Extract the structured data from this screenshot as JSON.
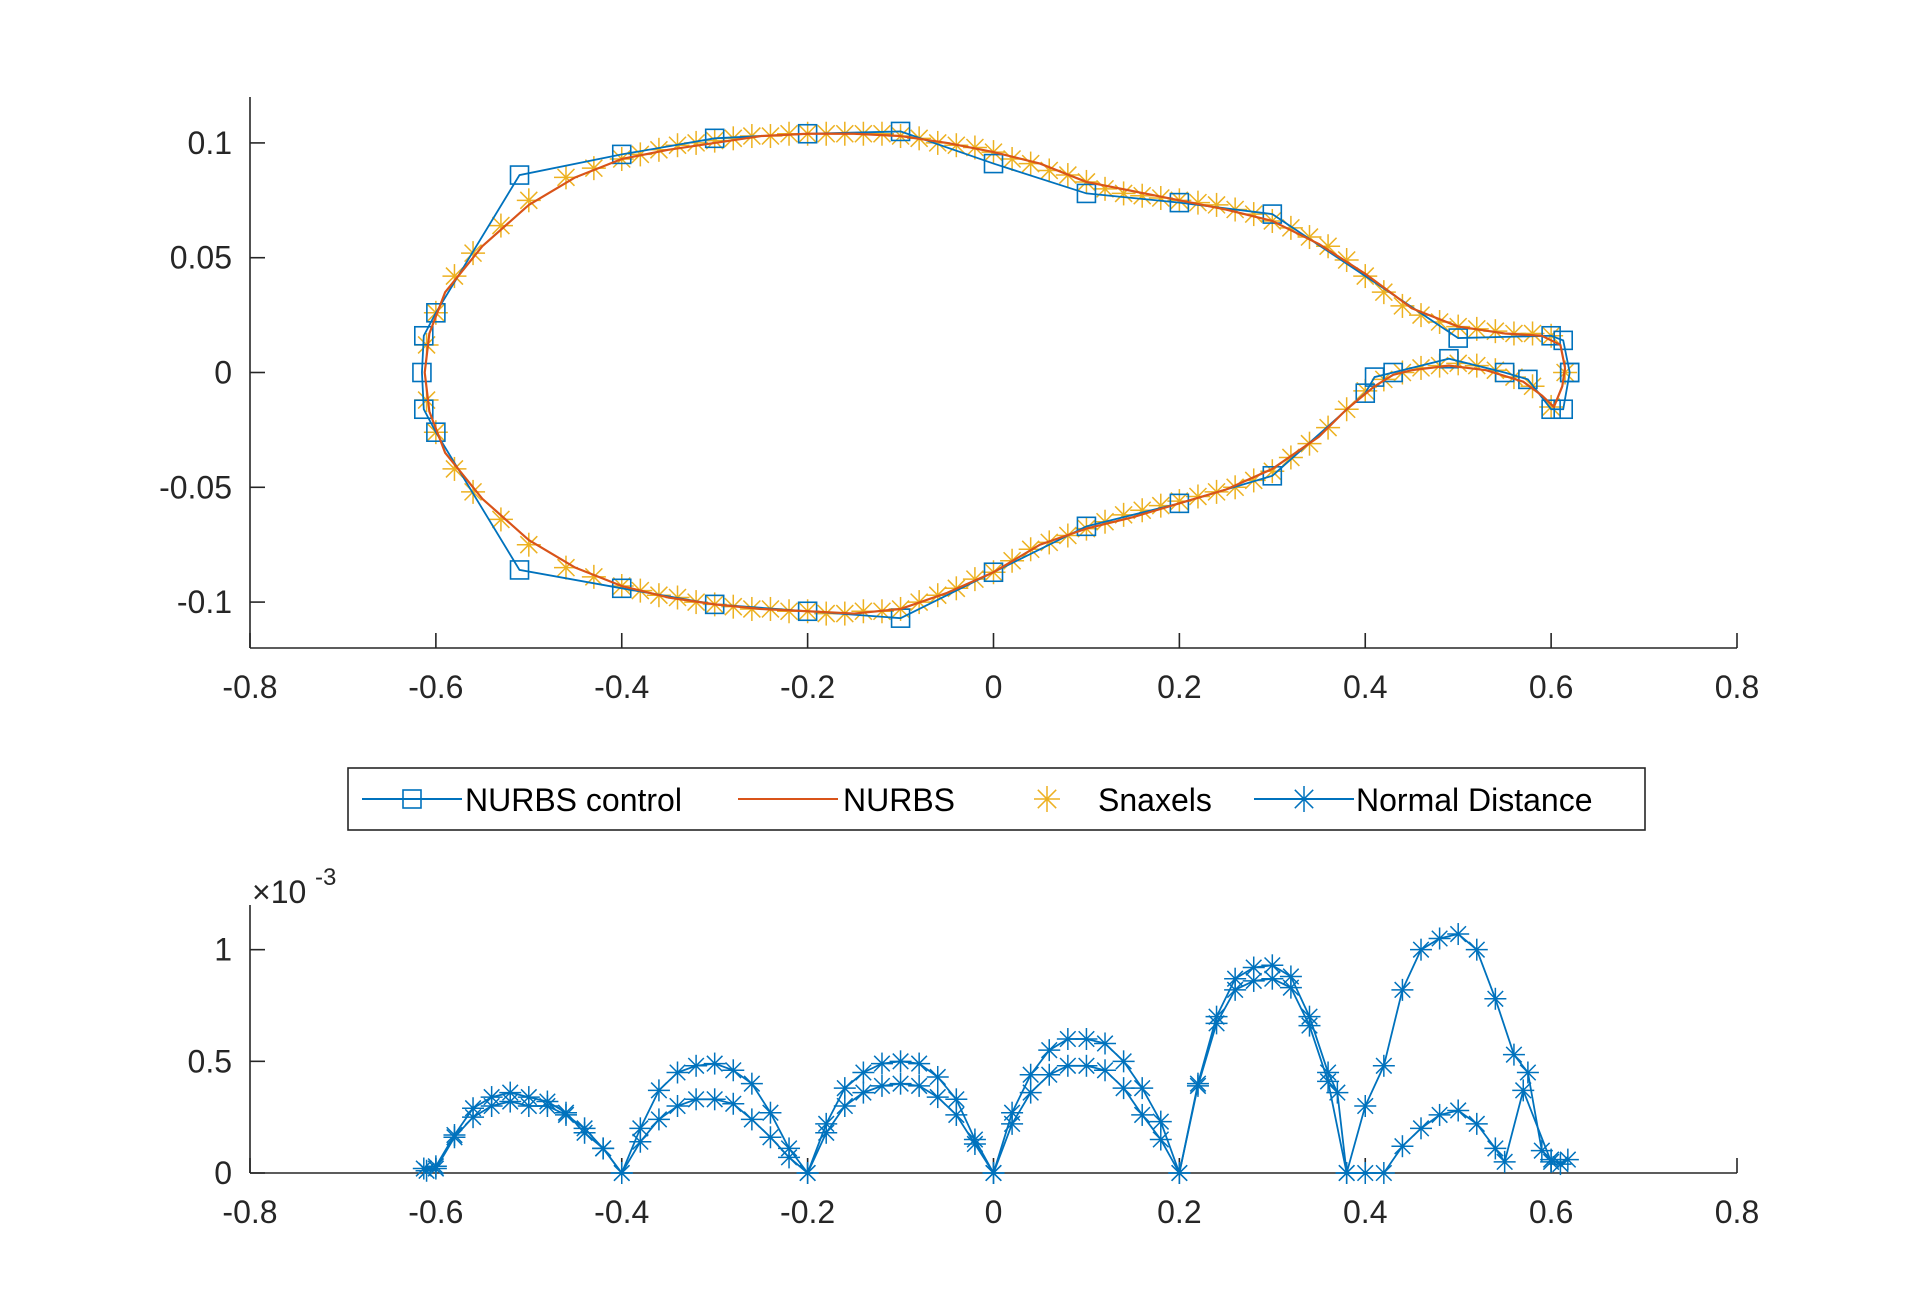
{
  "colors": {
    "control": "#0072BD",
    "nurbs": "#D95319",
    "snaxels": "#EDB120",
    "normal": "#0072BD",
    "axis": "#262626"
  },
  "legend": {
    "items": [
      {
        "label": "NURBS control",
        "marker": "square",
        "line": true
      },
      {
        "label": "NURBS",
        "marker": "none",
        "line": true
      },
      {
        "label": "Snaxels",
        "marker": "asterisk",
        "line": false
      },
      {
        "label": "Normal Distance",
        "marker": "asterisk",
        "line": true
      }
    ]
  },
  "chart_data": [
    {
      "type": "line",
      "title": "",
      "xlabel": "",
      "ylabel": "",
      "xlim": [
        -0.8,
        0.8
      ],
      "ylim": [
        -0.12,
        0.12
      ],
      "xticks": [
        -0.8,
        -0.6,
        -0.4,
        -0.2,
        0,
        0.2,
        0.4,
        0.6,
        0.8
      ],
      "xtick_labels": [
        "-0.8",
        "-0.6",
        "-0.4",
        "-0.2",
        "0",
        "0.2",
        "0.4",
        "0.6",
        "0.8"
      ],
      "yticks": [
        -0.1,
        -0.05,
        0,
        0.05,
        0.1
      ],
      "ytick_labels": [
        "-0.1",
        "-0.05",
        "0",
        "0.05",
        "0.1"
      ],
      "series": [
        {
          "name": "NURBS control",
          "marker": "square",
          "x": [
            0.62,
            0.613,
            0.6,
            0.5,
            0.3,
            0.2,
            0.1,
            0,
            -0.1,
            -0.2,
            -0.3,
            -0.4,
            -0.51,
            -0.6,
            -0.613,
            -0.615,
            -0.613,
            -0.6,
            -0.51,
            -0.4,
            -0.3,
            -0.2,
            -0.1,
            0,
            0.1,
            0.2,
            0.3,
            0.4,
            0.41,
            0.43,
            0.49,
            0.55,
            0.575,
            0.6,
            0.613,
            0.62
          ],
          "y": [
            0.0,
            0.014,
            0.016,
            0.015,
            0.069,
            0.074,
            0.078,
            0.091,
            0.105,
            0.104,
            0.102,
            0.095,
            0.086,
            0.026,
            0.016,
            0.0,
            -0.016,
            -0.026,
            -0.086,
            -0.094,
            -0.101,
            -0.104,
            -0.107,
            -0.087,
            -0.067,
            -0.057,
            -0.045,
            -0.009,
            -0.002,
            0.0,
            0.006,
            0.0,
            -0.003,
            -0.016,
            -0.016,
            0.0
          ]
        },
        {
          "name": "NURBS",
          "marker": "none",
          "x": [
            0.615,
            0.61,
            0.59,
            0.55,
            0.5,
            0.45,
            0.4,
            0.35,
            0.3,
            0.25,
            0.2,
            0.15,
            0.1,
            0.05,
            0.0,
            -0.05,
            -0.1,
            -0.15,
            -0.2,
            -0.25,
            -0.3,
            -0.35,
            -0.4,
            -0.45,
            -0.5,
            -0.55,
            -0.59,
            -0.607,
            -0.612,
            -0.607,
            -0.59,
            -0.55,
            -0.5,
            -0.45,
            -0.4,
            -0.35,
            -0.3,
            -0.25,
            -0.2,
            -0.15,
            -0.1,
            -0.05,
            0.0,
            0.05,
            0.1,
            0.15,
            0.2,
            0.25,
            0.3,
            0.35,
            0.38,
            0.41,
            0.43,
            0.45,
            0.49,
            0.53,
            0.57,
            0.59,
            0.603,
            0.612,
            0.615
          ],
          "y": [
            0.002,
            0.012,
            0.016,
            0.017,
            0.02,
            0.028,
            0.043,
            0.056,
            0.066,
            0.071,
            0.075,
            0.079,
            0.083,
            0.091,
            0.096,
            0.1,
            0.103,
            0.104,
            0.104,
            0.103,
            0.1,
            0.097,
            0.093,
            0.085,
            0.073,
            0.055,
            0.035,
            0.017,
            0.0,
            -0.017,
            -0.035,
            -0.055,
            -0.073,
            -0.085,
            -0.093,
            -0.098,
            -0.101,
            -0.103,
            -0.104,
            -0.105,
            -0.103,
            -0.096,
            -0.087,
            -0.075,
            -0.068,
            -0.063,
            -0.057,
            -0.051,
            -0.042,
            -0.028,
            -0.016,
            -0.006,
            -0.001,
            0.001,
            0.003,
            0.001,
            -0.004,
            -0.01,
            -0.015,
            -0.006,
            0.002
          ]
        },
        {
          "name": "Snaxels",
          "marker": "asterisk",
          "x": [
            0.615,
            0.6,
            0.58,
            0.56,
            0.54,
            0.52,
            0.5,
            0.48,
            0.46,
            0.44,
            0.42,
            0.4,
            0.38,
            0.36,
            0.34,
            0.32,
            0.3,
            0.28,
            0.26,
            0.24,
            0.22,
            0.2,
            0.18,
            0.16,
            0.14,
            0.12,
            0.1,
            0.08,
            0.06,
            0.04,
            0.02,
            0.0,
            -0.02,
            -0.04,
            -0.06,
            -0.08,
            -0.1,
            -0.12,
            -0.14,
            -0.16,
            -0.18,
            -0.2,
            -0.22,
            -0.24,
            -0.26,
            -0.28,
            -0.3,
            -0.32,
            -0.34,
            -0.36,
            -0.38,
            -0.4,
            -0.43,
            -0.46,
            -0.5,
            -0.53,
            -0.56,
            -0.58,
            -0.6,
            -0.61,
            -0.61,
            -0.6,
            -0.58,
            -0.56,
            -0.53,
            -0.5,
            -0.46,
            -0.43,
            -0.4,
            -0.38,
            -0.36,
            -0.34,
            -0.32,
            -0.3,
            -0.28,
            -0.26,
            -0.24,
            -0.22,
            -0.2,
            -0.18,
            -0.16,
            -0.14,
            -0.12,
            -0.1,
            -0.08,
            -0.06,
            -0.04,
            -0.02,
            0.0,
            0.02,
            0.04,
            0.06,
            0.08,
            0.1,
            0.12,
            0.14,
            0.16,
            0.18,
            0.2,
            0.22,
            0.24,
            0.26,
            0.28,
            0.3,
            0.32,
            0.34,
            0.36,
            0.38,
            0.4,
            0.42,
            0.44,
            0.46,
            0.48,
            0.5,
            0.52,
            0.54,
            0.56,
            0.58,
            0.6
          ],
          "y": [
            0.0,
            0.016,
            0.017,
            0.017,
            0.018,
            0.019,
            0.02,
            0.022,
            0.025,
            0.029,
            0.035,
            0.042,
            0.049,
            0.055,
            0.059,
            0.063,
            0.066,
            0.069,
            0.071,
            0.073,
            0.074,
            0.075,
            0.076,
            0.077,
            0.078,
            0.08,
            0.083,
            0.086,
            0.088,
            0.091,
            0.093,
            0.096,
            0.098,
            0.099,
            0.1,
            0.102,
            0.103,
            0.104,
            0.104,
            0.104,
            0.104,
            0.104,
            0.104,
            0.103,
            0.103,
            0.102,
            0.101,
            0.1,
            0.099,
            0.097,
            0.095,
            0.093,
            0.089,
            0.085,
            0.075,
            0.064,
            0.052,
            0.042,
            0.026,
            0.012,
            -0.012,
            -0.026,
            -0.042,
            -0.052,
            -0.064,
            -0.075,
            -0.085,
            -0.089,
            -0.093,
            -0.095,
            -0.097,
            -0.098,
            -0.1,
            -0.101,
            -0.102,
            -0.103,
            -0.103,
            -0.104,
            -0.104,
            -0.105,
            -0.105,
            -0.104,
            -0.104,
            -0.103,
            -0.1,
            -0.097,
            -0.094,
            -0.09,
            -0.087,
            -0.082,
            -0.077,
            -0.074,
            -0.071,
            -0.068,
            -0.065,
            -0.062,
            -0.06,
            -0.058,
            -0.056,
            -0.054,
            -0.052,
            -0.05,
            -0.047,
            -0.043,
            -0.037,
            -0.031,
            -0.024,
            -0.016,
            -0.008,
            -0.003,
            0.0,
            0.002,
            0.003,
            0.004,
            0.003,
            0.001,
            -0.002,
            -0.006,
            -0.015
          ]
        }
      ]
    },
    {
      "type": "line",
      "title": "",
      "xlabel": "",
      "ylabel": "",
      "exponent_label": "×10",
      "exponent_power": "-3",
      "xlim": [
        -0.8,
        0.8
      ],
      "ylim": [
        0,
        1.2
      ],
      "xticks": [
        -0.8,
        -0.6,
        -0.4,
        -0.2,
        0,
        0.2,
        0.4,
        0.6,
        0.8
      ],
      "xtick_labels": [
        "-0.8",
        "-0.6",
        "-0.4",
        "-0.2",
        "0",
        "0.2",
        "0.4",
        "0.6",
        "0.8"
      ],
      "yticks": [
        0,
        0.5,
        1
      ],
      "ytick_labels": [
        "0",
        "0.5",
        "1"
      ],
      "series": [
        {
          "name": "Normal Distance (upper)",
          "marker": "asterisk",
          "x": [
            -0.613,
            -0.6,
            -0.58,
            -0.56,
            -0.54,
            -0.52,
            -0.5,
            -0.48,
            -0.46,
            -0.44,
            -0.42,
            -0.4,
            -0.38,
            -0.36,
            -0.34,
            -0.32,
            -0.3,
            -0.28,
            -0.26,
            -0.24,
            -0.22,
            -0.2,
            -0.18,
            -0.16,
            -0.14,
            -0.12,
            -0.1,
            -0.08,
            -0.06,
            -0.04,
            -0.02,
            0.0,
            0.02,
            0.04,
            0.06,
            0.08,
            0.1,
            0.12,
            0.14,
            0.16,
            0.18,
            0.2,
            0.22,
            0.24,
            0.26,
            0.28,
            0.3,
            0.32,
            0.34,
            0.36,
            0.37,
            0.38,
            0.4,
            0.42,
            0.44,
            0.46,
            0.48,
            0.5,
            0.52,
            0.54,
            0.56,
            0.575,
            0.59,
            0.6,
            0.61,
            0.618
          ],
          "y": [
            0.02,
            0.03,
            0.17,
            0.29,
            0.34,
            0.36,
            0.34,
            0.32,
            0.27,
            0.18,
            0.11,
            0.0,
            0.2,
            0.37,
            0.45,
            0.48,
            0.49,
            0.46,
            0.4,
            0.27,
            0.11,
            0.0,
            0.22,
            0.38,
            0.45,
            0.49,
            0.5,
            0.49,
            0.43,
            0.33,
            0.15,
            0.0,
            0.27,
            0.44,
            0.55,
            0.6,
            0.6,
            0.58,
            0.5,
            0.38,
            0.23,
            0.0,
            0.4,
            0.7,
            0.87,
            0.92,
            0.93,
            0.88,
            0.7,
            0.45,
            0.36,
            0.0,
            0.3,
            0.48,
            0.82,
            1.0,
            1.05,
            1.07,
            1.0,
            0.78,
            0.53,
            0.45,
            0.1,
            0.06,
            0.04,
            0.06
          ]
        },
        {
          "name": "Normal Distance (lower)",
          "marker": "asterisk",
          "x": [
            -0.61,
            -0.6,
            -0.58,
            -0.56,
            -0.54,
            -0.52,
            -0.5,
            -0.48,
            -0.46,
            -0.44,
            -0.42,
            -0.4,
            -0.38,
            -0.36,
            -0.34,
            -0.32,
            -0.3,
            -0.28,
            -0.26,
            -0.24,
            -0.22,
            -0.2,
            -0.18,
            -0.16,
            -0.14,
            -0.12,
            -0.1,
            -0.08,
            -0.06,
            -0.04,
            -0.02,
            0.0,
            0.02,
            0.04,
            0.06,
            0.08,
            0.1,
            0.12,
            0.14,
            0.16,
            0.18,
            0.2,
            0.22,
            0.24,
            0.26,
            0.28,
            0.3,
            0.32,
            0.34,
            0.36,
            0.38,
            0.4,
            0.42,
            0.44,
            0.46,
            0.48,
            0.5,
            0.52,
            0.54,
            0.55,
            0.57,
            0.6
          ],
          "y": [
            0.01,
            0.02,
            0.16,
            0.25,
            0.3,
            0.32,
            0.3,
            0.3,
            0.26,
            0.2,
            0.11,
            0.0,
            0.14,
            0.24,
            0.3,
            0.33,
            0.33,
            0.31,
            0.24,
            0.16,
            0.07,
            0.0,
            0.18,
            0.3,
            0.36,
            0.39,
            0.4,
            0.39,
            0.34,
            0.26,
            0.13,
            0.0,
            0.22,
            0.36,
            0.44,
            0.48,
            0.48,
            0.46,
            0.38,
            0.26,
            0.15,
            0.0,
            0.39,
            0.67,
            0.82,
            0.86,
            0.87,
            0.83,
            0.66,
            0.41,
            0.0,
            0.0,
            0.0,
            0.12,
            0.2,
            0.26,
            0.28,
            0.22,
            0.11,
            0.05,
            0.37,
            0.05
          ]
        }
      ]
    }
  ]
}
